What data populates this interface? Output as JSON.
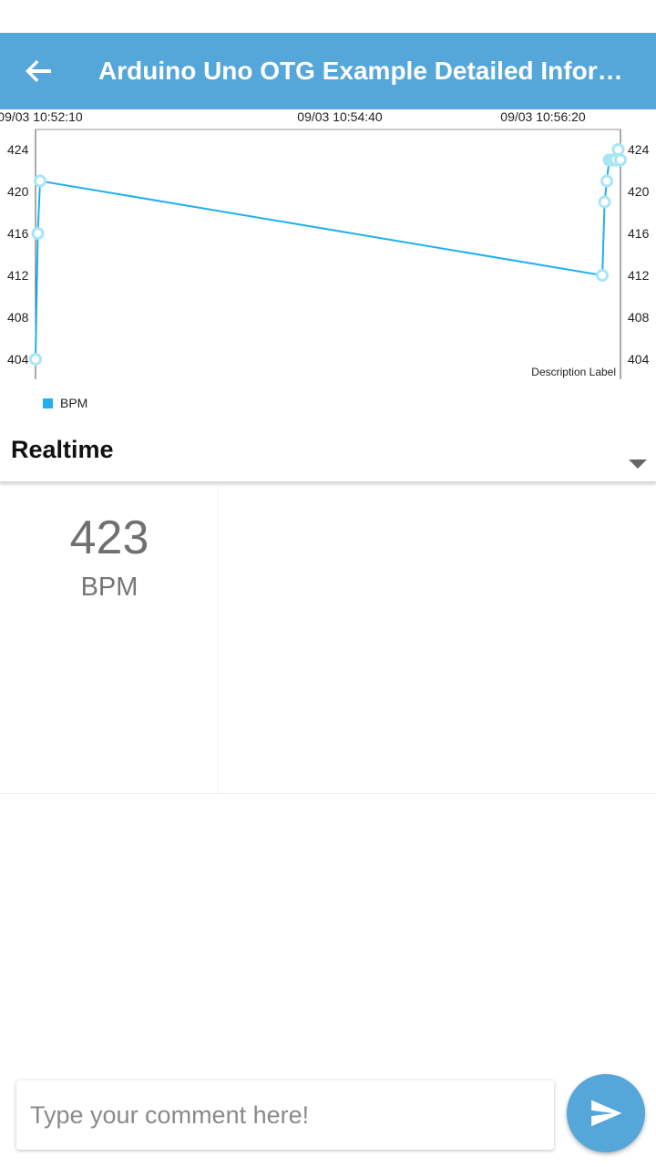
{
  "header": {
    "title": "Arduino Uno OTG Example Detailed Information",
    "back_icon": "arrow-back-icon",
    "color": "#55a7d9"
  },
  "chart_data": {
    "type": "line",
    "title": "",
    "description": "Description Label",
    "x_tick_labels": [
      "09/03 10:52:10",
      "09/03 10:54:40",
      "09/03 10:56:20"
    ],
    "y_ticks": [
      404,
      408,
      412,
      416,
      420,
      424
    ],
    "ylim": [
      404,
      424
    ],
    "ylabel": "",
    "xlabel": "",
    "legend": "bottom-left",
    "series": [
      {
        "name": "BPM",
        "color": "#1fb0ee",
        "x": [
          "10:52:10",
          "10:52:11",
          "10:52:12",
          "10:56:20",
          "10:56:21",
          "10:56:22",
          "10:56:23",
          "10:56:24",
          "10:56:25",
          "10:56:26",
          "10:56:27",
          "10:56:28"
        ],
        "values": [
          404,
          416,
          421,
          412,
          419,
          421,
          423,
          423,
          423,
          423,
          424,
          423
        ]
      }
    ]
  },
  "section": {
    "label": "Realtime",
    "dropdown_icon": "triangle-down-icon"
  },
  "reading": {
    "value": "423",
    "unit": "BPM"
  },
  "comment": {
    "placeholder": "Type your comment here!",
    "send_icon": "send-icon"
  }
}
